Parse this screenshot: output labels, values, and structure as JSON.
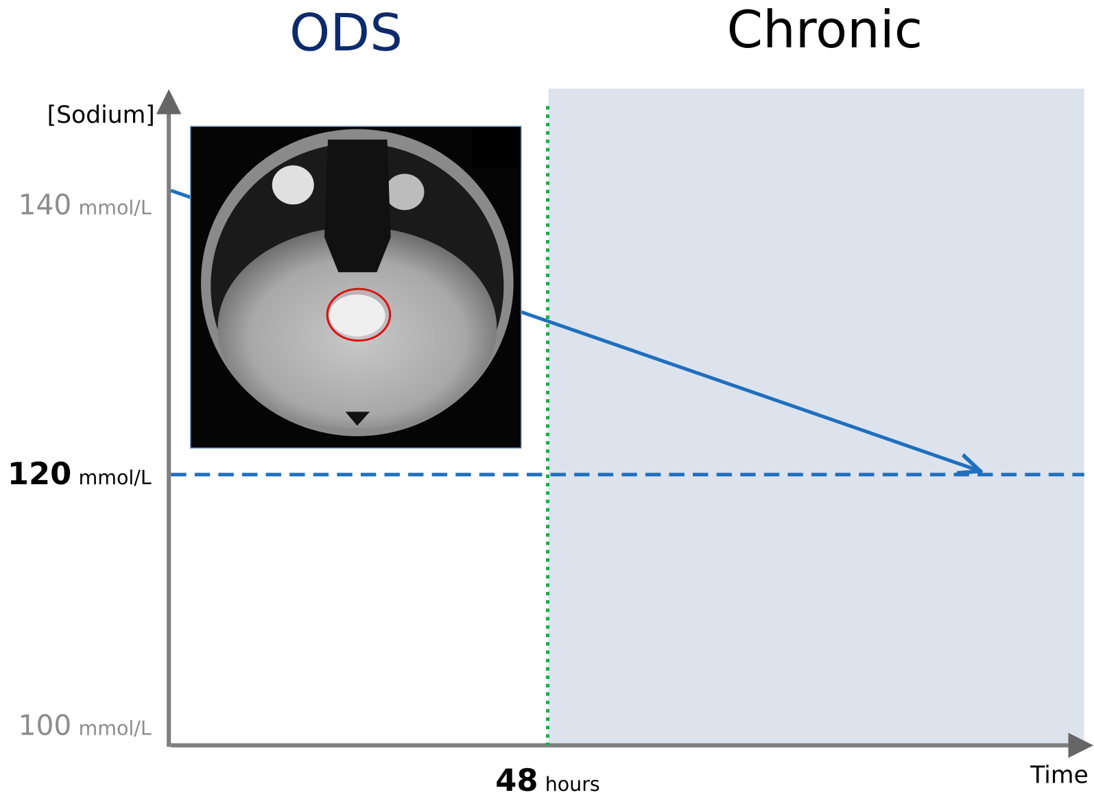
{
  "headings": {
    "left": "ODS",
    "right": "Chronic"
  },
  "y_axis": {
    "label": "[Sodium]",
    "ticks": [
      {
        "number": 140,
        "unit": "mmol/L"
      },
      {
        "number": 120,
        "unit": "mmol/L"
      },
      {
        "number": 100,
        "unit": "mmol/L"
      }
    ]
  },
  "x_axis": {
    "label": "Time",
    "marker": {
      "number": 48,
      "unit": "hours"
    }
  }
}
